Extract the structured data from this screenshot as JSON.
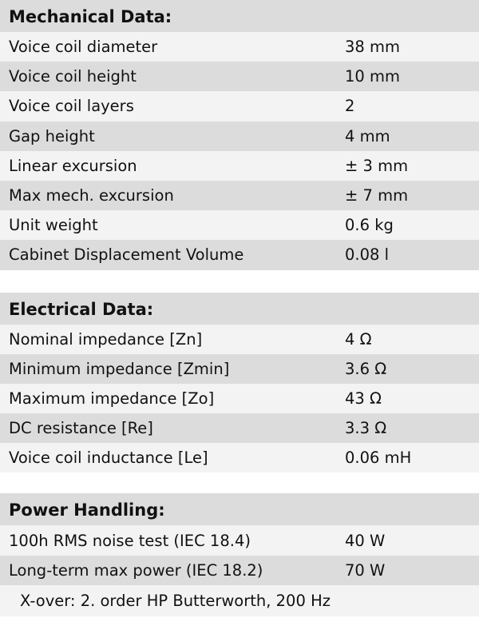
{
  "mechanical": {
    "title": "Mechanical Data:",
    "rows": [
      {
        "label": "Voice coil diameter",
        "value": "38 mm"
      },
      {
        "label": "Voice coil height",
        "value": "10 mm"
      },
      {
        "label": "Voice coil layers",
        "value": "2"
      },
      {
        "label": "Gap height",
        "value": "4 mm"
      },
      {
        "label": "Linear excursion",
        "value": "± 3 mm"
      },
      {
        "label": "Max mech. excursion",
        "value": "± 7 mm"
      },
      {
        "label": "Unit weight",
        "value": "0.6 kg"
      },
      {
        "label": "Cabinet Displacement Volume",
        "value": "0.08 l"
      }
    ]
  },
  "electrical": {
    "title": "Electrical Data:",
    "rows": [
      {
        "label": "Nominal impedance [Zn]",
        "value": "4 Ω"
      },
      {
        "label": "Minimum impedance [Zmin]",
        "value": "3.6 Ω"
      },
      {
        "label": "Maximum impedance [Zo]",
        "value": "43 Ω"
      },
      {
        "label": "DC resistance [Re]",
        "value": "3.3 Ω"
      },
      {
        "label": "Voice coil inductance [Le]",
        "value": "0.06 mH"
      }
    ]
  },
  "power": {
    "title": "Power Handling:",
    "rows": [
      {
        "label": "100h RMS noise test (IEC 18.4)",
        "value": "40 W"
      },
      {
        "label": "Long-term max power (IEC 18.2)",
        "value": "70 W"
      }
    ],
    "note": "X-over: 2. order HP Butterworth, 200 Hz"
  }
}
